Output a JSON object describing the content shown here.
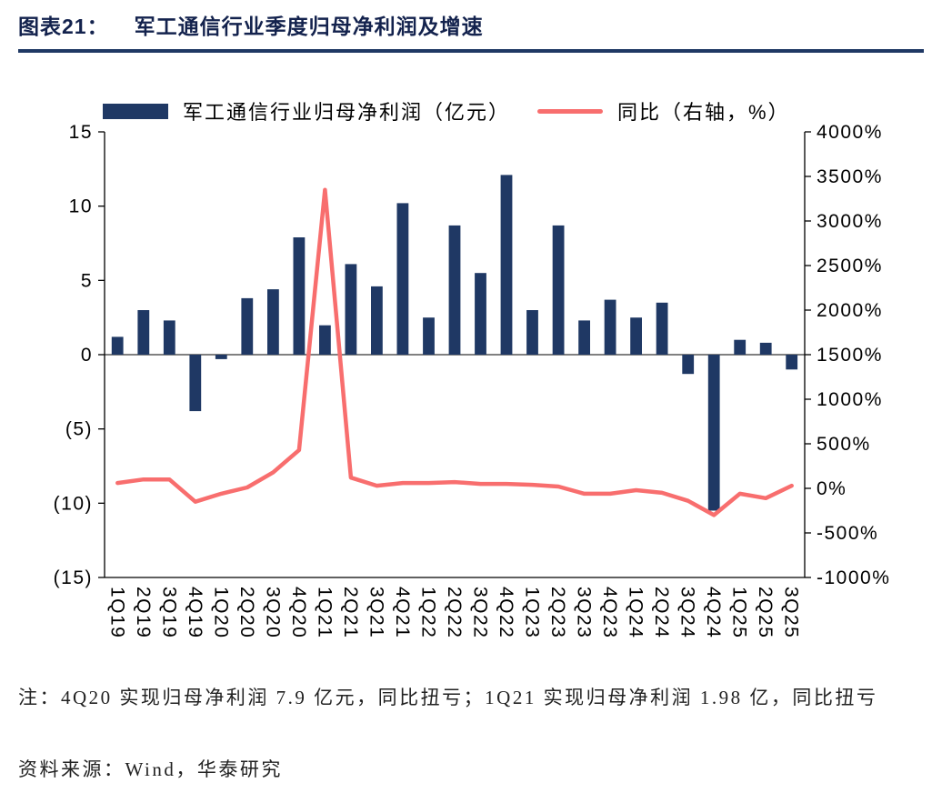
{
  "header": {
    "figure_label": "图表21：",
    "title": "军工通信行业季度归母净利润及增速"
  },
  "chart_data": {
    "type": "bar",
    "combo": "bar+line dual axis",
    "title": "军工通信行业季度归母净利润及增速",
    "categories": [
      "1Q19",
      "2Q19",
      "3Q19",
      "4Q19",
      "1Q20",
      "2Q20",
      "3Q20",
      "4Q20",
      "1Q21",
      "2Q21",
      "3Q21",
      "4Q21",
      "1Q22",
      "2Q22",
      "3Q22",
      "4Q22",
      "1Q23",
      "2Q23",
      "3Q23",
      "4Q23",
      "1Q24",
      "2Q24",
      "3Q24",
      "4Q24",
      "1Q25",
      "2Q25",
      "3Q25"
    ],
    "series": [
      {
        "name": "军工通信行业归母净利润（亿元）",
        "type": "bar",
        "axis": "left",
        "color": "#1f3864",
        "values": [
          1.2,
          3.0,
          2.3,
          -3.8,
          -0.3,
          3.8,
          4.4,
          7.9,
          1.98,
          6.1,
          4.6,
          10.2,
          2.5,
          8.7,
          5.5,
          12.1,
          3.0,
          8.7,
          2.3,
          3.7,
          2.5,
          3.5,
          -1.3,
          -10.5,
          1.0,
          0.8,
          -1.0
        ]
      },
      {
        "name": "同比（右轴，%）",
        "type": "line",
        "axis": "right",
        "color": "#f86e6e",
        "values": [
          60,
          100,
          100,
          -150,
          -60,
          10,
          180,
          430,
          3350,
          120,
          30,
          60,
          60,
          70,
          50,
          50,
          40,
          20,
          -60,
          -60,
          -20,
          -50,
          -140,
          -300,
          -60,
          -110,
          30
        ]
      }
    ],
    "left_axis": {
      "min": -15,
      "max": 15,
      "step": 5,
      "labels": [
        "15",
        "10",
        "5",
        "0",
        "(5)",
        "(10)",
        "(15)"
      ]
    },
    "right_axis": {
      "min": -1000,
      "max": 4000,
      "step": 500,
      "labels": [
        "4000%",
        "3500%",
        "3000%",
        "2500%",
        "2000%",
        "1500%",
        "1000%",
        "500%",
        "0%",
        "-500%",
        "-1000%"
      ]
    },
    "grid": "off",
    "legend_position": "top",
    "x_label_rotation": 90
  },
  "footer": {
    "note": "注：4Q20 实现归母净利润 7.9 亿元，同比扭亏；1Q21 实现归母净利润 1.98 亿，同比扭亏",
    "source": "资料来源：Wind，华泰研究"
  },
  "colors": {
    "bar": "#1f3864",
    "line": "#f86e6e",
    "title_text": "#13224d",
    "title_underline": "#1f3864",
    "axis": "#000000"
  }
}
